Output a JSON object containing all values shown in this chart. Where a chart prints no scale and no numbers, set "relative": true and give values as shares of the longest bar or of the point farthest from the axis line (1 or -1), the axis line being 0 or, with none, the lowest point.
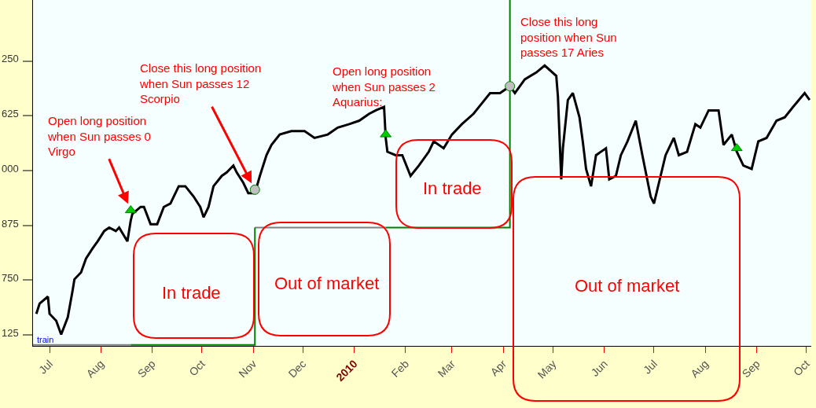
{
  "chart_data": {
    "type": "line",
    "relative": true,
    "xlim": [
      "2009-06-21",
      "2010-10-04"
    ],
    "xticks": [
      {
        "value": "2009-07-01",
        "label": "Jul"
      },
      {
        "value": "2009-08-01",
        "label": "Aug"
      },
      {
        "value": "2009-09-01",
        "label": "Sep"
      },
      {
        "value": "2009-10-01",
        "label": "Oct"
      },
      {
        "value": "2009-11-01",
        "label": "Nov"
      },
      {
        "value": "2009-12-01",
        "label": "Dec"
      },
      {
        "value": "2010-01-01",
        "label": "2010"
      },
      {
        "value": "2010-02-01",
        "label": "Feb"
      },
      {
        "value": "2010-03-01",
        "label": "Mar"
      },
      {
        "value": "2010-04-01",
        "label": "Apr"
      },
      {
        "value": "2010-05-01",
        "label": "May"
      },
      {
        "value": "2010-06-01",
        "label": "Jun"
      },
      {
        "value": "2010-07-01",
        "label": "Jul"
      },
      {
        "value": "2010-08-01",
        "label": "Aug"
      },
      {
        "value": "2010-09-01",
        "label": "Sep"
      },
      {
        "value": "2010-10-01",
        "label": "Oct"
      }
    ],
    "grid": false,
    "series": [
      {
        "color": "#808080",
        "x": [
          "2009-06-21",
          "2009-08-19",
          "2009-09-01",
          "2009-11-02",
          "2010-01-20"
        ],
        "values": [
          0.0,
          0.0,
          null,
          0.34,
          0.34
        ]
      },
      {
        "color": "#008000",
        "x": [
          "2009-08-19",
          "2009-11-02",
          "2009-11-02",
          "2009-12-01",
          "2010-01-20",
          "2010-04-05",
          "2010-04-05"
        ],
        "values": [
          0.0,
          0.0,
          0.34,
          null,
          0.34,
          0.34,
          1
        ]
      },
      {
        "color": "#000000",
        "x": [
          "2009-06-23",
          "2009-06-25",
          "2009-06-30",
          "2009-07-01",
          "2009-07-05",
          "2009-07-08",
          "2009-07-12",
          "2009-07-15",
          "2009-07-16",
          "2009-07-20",
          "2009-07-23",
          "2009-07-27",
          "2009-07-30",
          "2009-08-03",
          "2009-08-06",
          "2009-08-10",
          "2009-08-12",
          "2009-08-17",
          "2009-08-19",
          "2009-08-20",
          "2009-08-25",
          "2009-08-27",
          "2009-08-31",
          "2009-09-04",
          "2009-09-08",
          "2009-09-12",
          "2009-09-17",
          "2009-09-21",
          "2009-09-26",
          "2009-09-30",
          "2009-10-02",
          "2009-10-05",
          "2009-10-08",
          "2009-10-13",
          "2009-10-16",
          "2009-10-20",
          "2009-10-22",
          "2009-10-26",
          "2009-10-29",
          "2009-11-02",
          "2009-11-05",
          "2009-11-09",
          "2009-11-12",
          "2009-11-17",
          "2009-11-24",
          "2009-12-02",
          "2009-12-08",
          "2009-12-16",
          "2009-12-22",
          "2009-12-29",
          "2010-01-04",
          "2010-01-10",
          "2010-01-14",
          "2010-01-19",
          "2010-01-20",
          "2010-01-21",
          "2010-01-26",
          "2010-01-30",
          "2010-02-04",
          "2010-02-09",
          "2010-02-15",
          "2010-02-18",
          "2010-02-24",
          "2010-03-01",
          "2010-03-07",
          "2010-03-14",
          "2010-03-19",
          "2010-03-24",
          "2010-03-30",
          "2010-04-05",
          "2010-04-08",
          "2010-04-14",
          "2010-04-21",
          "2010-04-26",
          "2010-05-03",
          "2010-05-04",
          "2010-05-06",
          "2010-05-07",
          "2010-05-10",
          "2010-05-13",
          "2010-05-17",
          "2010-05-19",
          "2010-05-21",
          "2010-05-24",
          "2010-05-27",
          "2010-06-02",
          "2010-06-04",
          "2010-06-08",
          "2010-06-11",
          "2010-06-15",
          "2010-06-20",
          "2010-06-24",
          "2010-06-29",
          "2010-07-01",
          "2010-07-05",
          "2010-07-08",
          "2010-07-13",
          "2010-07-16",
          "2010-07-21",
          "2010-07-26",
          "2010-07-29",
          "2010-08-03",
          "2010-08-09",
          "2010-08-12",
          "2010-08-17",
          "2010-08-20",
          "2010-08-24",
          "2010-08-29",
          "2010-09-02",
          "2010-09-07",
          "2010-09-13",
          "2010-09-18",
          "2010-09-23",
          "2010-09-30",
          "2010-10-03"
        ],
        "values": [
          0.09,
          0.12,
          0.14,
          0.09,
          0.07,
          0.03,
          0.08,
          0.16,
          0.19,
          0.21,
          0.25,
          0.28,
          0.3,
          0.33,
          0.34,
          0.33,
          0.34,
          0.3,
          0.36,
          0.38,
          0.4,
          0.4,
          0.35,
          0.35,
          0.4,
          0.41,
          0.46,
          0.46,
          0.43,
          0.4,
          0.37,
          0.4,
          0.46,
          0.49,
          0.5,
          0.52,
          0.5,
          0.47,
          0.44,
          0.44,
          0.49,
          0.55,
          0.58,
          0.61,
          0.62,
          0.62,
          0.6,
          0.61,
          0.63,
          0.64,
          0.65,
          0.67,
          0.68,
          0.69,
          0.6,
          0.56,
          0.55,
          0.55,
          0.49,
          0.52,
          0.56,
          0.59,
          0.57,
          0.61,
          0.64,
          0.67,
          0.7,
          0.73,
          0.73,
          0.75,
          0.73,
          0.77,
          0.79,
          0.81,
          0.78,
          0.72,
          0.48,
          0.57,
          0.71,
          0.73,
          0.66,
          0.59,
          0.51,
          0.46,
          0.55,
          0.57,
          0.48,
          0.49,
          0.55,
          0.59,
          0.65,
          0.55,
          0.43,
          0.41,
          0.49,
          0.55,
          0.6,
          0.55,
          0.56,
          0.64,
          0.63,
          0.68,
          0.68,
          0.58,
          0.61,
          0.56,
          0.52,
          0.51,
          0.59,
          0.6,
          0.65,
          0.66,
          0.69,
          0.73,
          0.71
        ]
      },
      {
        "type": "scatter",
        "color": "#00cc00",
        "marker": "triangle",
        "x": [
          "2009-08-19",
          "2010-01-20",
          "2010-08-20"
        ],
        "values": [
          0.39,
          0.61,
          0.57
        ]
      },
      {
        "type": "scatter",
        "color": "#c0c0c0",
        "marker": "circle",
        "x": [
          "2009-11-02",
          "2010-04-05"
        ],
        "values": [
          0.45,
          0.75
        ]
      }
    ],
    "annotations": [
      {
        "text": "Open long position\nwhen Sun passes 0\nVirgo",
        "x": "2009-08-19",
        "y": 0.39
      },
      {
        "text": "Close this long position\nwhen Sun passes 12\nScorpio",
        "x": "2009-11-02",
        "y": 0.45
      },
      "Open long position\nwhen Sun passes 2\nAquarius:",
      "Close this long\nposition when Sun\npasses 17 Aries",
      "In trade",
      "Out of market",
      "In trade",
      "Out of market",
      "train",
      "125",
      "750",
      "875",
      "000",
      "625",
      "250"
    ]
  }
}
